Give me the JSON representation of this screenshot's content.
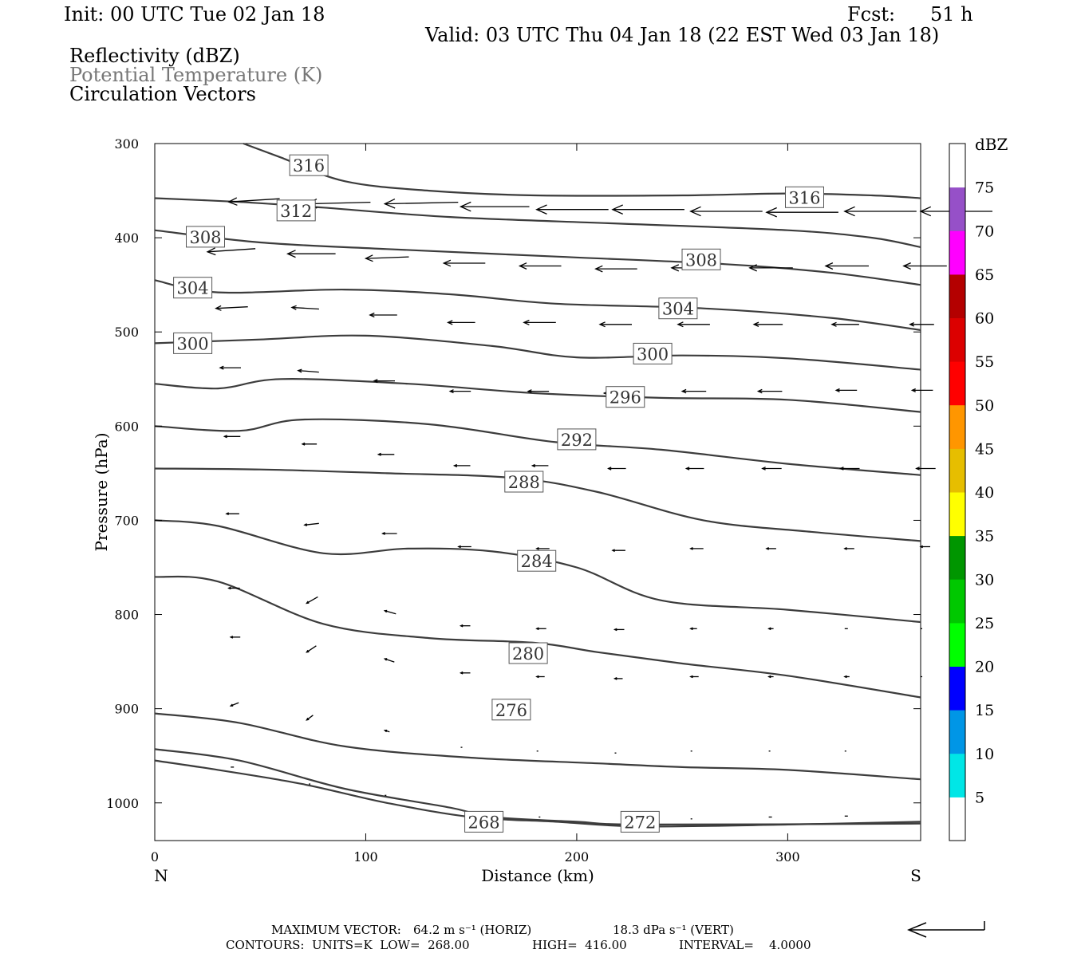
{
  "header": {
    "init": "Init: 00 UTC Tue 02 Jan 18",
    "fcst_label": "Fcst:",
    "fcst_value": "51 h",
    "valid": "Valid: 03 UTC Thu 04 Jan 18 (22 EST Wed 03 Jan 18)",
    "fields": [
      "Reflectivity (dBZ)",
      "Potential Temperature (K)",
      "Circulation Vectors"
    ]
  },
  "colors": {
    "field2_text": "#777777",
    "contour": "#3c3c3c",
    "vector": "#000000"
  },
  "chart_data": {
    "type": "line",
    "xlabel": "Distance (km)",
    "ylabel": "Pressure (hPa)",
    "xlim": [
      0,
      363
    ],
    "ylim": [
      300,
      1040
    ],
    "y_reversed": true,
    "x_ticks": [
      0,
      100,
      200,
      300
    ],
    "x_tick_labels": [
      "0",
      "100",
      "200",
      "300"
    ],
    "y_ticks": [
      300,
      400,
      500,
      600,
      700,
      800,
      900,
      1000
    ],
    "y_tick_labels": [
      "300",
      "400",
      "500",
      "600",
      "700",
      "800",
      "900",
      "1000"
    ],
    "x_end_labels": {
      "left": "N",
      "right": "S"
    },
    "contour_units": "K",
    "contours": [
      {
        "level": "316",
        "points": [
          [
            42,
            300
          ],
          [
            60,
            315
          ],
          [
            90,
            340
          ],
          [
            130,
            350
          ],
          [
            180,
            355
          ],
          [
            250,
            355
          ],
          [
            300,
            353
          ],
          [
            340,
            355
          ],
          [
            363,
            358
          ]
        ]
      },
      {
        "level": "312",
        "points": [
          [
            0,
            358
          ],
          [
            40,
            362
          ],
          [
            80,
            368
          ],
          [
            140,
            378
          ],
          [
            220,
            385
          ],
          [
            300,
            392
          ],
          [
            340,
            400
          ],
          [
            363,
            410
          ]
        ]
      },
      {
        "level": "308",
        "points": [
          [
            0,
            392
          ],
          [
            50,
            405
          ],
          [
            110,
            412
          ],
          [
            190,
            420
          ],
          [
            270,
            428
          ],
          [
            320,
            437
          ],
          [
            363,
            450
          ]
        ]
      },
      {
        "level": "304",
        "points": [
          [
            0,
            445
          ],
          [
            30,
            458
          ],
          [
            90,
            455
          ],
          [
            140,
            460
          ],
          [
            190,
            470
          ],
          [
            260,
            475
          ],
          [
            320,
            485
          ],
          [
            363,
            498
          ]
        ]
      },
      {
        "level": "300",
        "points": [
          [
            0,
            512
          ],
          [
            50,
            508
          ],
          [
            100,
            504
          ],
          [
            160,
            515
          ],
          [
            200,
            527
          ],
          [
            250,
            525
          ],
          [
            300,
            528
          ],
          [
            363,
            540
          ]
        ]
      },
      {
        "level": "296",
        "points": [
          [
            0,
            555
          ],
          [
            30,
            560
          ],
          [
            60,
            550
          ],
          [
            120,
            555
          ],
          [
            180,
            565
          ],
          [
            240,
            570
          ],
          [
            300,
            572
          ],
          [
            363,
            585
          ]
        ]
      },
      {
        "level": "292",
        "points": [
          [
            0,
            600
          ],
          [
            40,
            605
          ],
          [
            70,
            593
          ],
          [
            130,
            598
          ],
          [
            190,
            617
          ],
          [
            240,
            625
          ],
          [
            300,
            640
          ],
          [
            363,
            652
          ]
        ]
      },
      {
        "level": "288",
        "points": [
          [
            0,
            645
          ],
          [
            50,
            646
          ],
          [
            110,
            650
          ],
          [
            170,
            655
          ],
          [
            210,
            670
          ],
          [
            260,
            700
          ],
          [
            310,
            712
          ],
          [
            363,
            722
          ]
        ]
      },
      {
        "level": "284",
        "points": [
          [
            0,
            700
          ],
          [
            30,
            706
          ],
          [
            80,
            735
          ],
          [
            120,
            730
          ],
          [
            160,
            733
          ],
          [
            200,
            750
          ],
          [
            240,
            785
          ],
          [
            300,
            795
          ],
          [
            363,
            808
          ]
        ]
      },
      {
        "level": "280",
        "points": [
          [
            0,
            760
          ],
          [
            30,
            765
          ],
          [
            80,
            810
          ],
          [
            130,
            825
          ],
          [
            180,
            830
          ],
          [
            210,
            840
          ],
          [
            250,
            852
          ],
          [
            300,
            865
          ],
          [
            363,
            888
          ]
        ]
      },
      {
        "level": "276",
        "points": [
          [
            0,
            905
          ],
          [
            40,
            915
          ],
          [
            90,
            940
          ],
          [
            150,
            952
          ],
          [
            210,
            958
          ],
          [
            250,
            962
          ],
          [
            300,
            965
          ],
          [
            363,
            975
          ]
        ]
      },
      {
        "level": "272",
        "points": [
          [
            0,
            943
          ],
          [
            40,
            955
          ],
          [
            90,
            985
          ],
          [
            140,
            1005
          ],
          [
            160,
            1015
          ],
          [
            200,
            1020
          ],
          [
            232,
            1023
          ],
          [
            363,
            1022
          ]
        ]
      },
      {
        "level": "268",
        "points": [
          [
            0,
            955
          ],
          [
            30,
            965
          ],
          [
            70,
            980
          ],
          [
            110,
            1000
          ],
          [
            150,
            1015
          ],
          [
            190,
            1020
          ],
          [
            230,
            1025
          ],
          [
            300,
            1023
          ],
          [
            363,
            1020
          ]
        ]
      }
    ],
    "contour_labels": [
      {
        "level": "316",
        "x": 73,
        "p": 323
      },
      {
        "level": "316",
        "x": 308,
        "p": 357
      },
      {
        "level": "312",
        "x": 67,
        "p": 371
      },
      {
        "level": "308",
        "x": 24,
        "p": 399
      },
      {
        "level": "308",
        "x": 259,
        "p": 423
      },
      {
        "level": "304",
        "x": 18,
        "p": 453
      },
      {
        "level": "304",
        "x": 248,
        "p": 475
      },
      {
        "level": "300",
        "x": 18,
        "p": 512
      },
      {
        "level": "300",
        "x": 236,
        "p": 523
      },
      {
        "level": "296",
        "x": 223,
        "p": 569
      },
      {
        "level": "292",
        "x": 200,
        "p": 614
      },
      {
        "level": "288",
        "x": 175,
        "p": 659
      },
      {
        "level": "284",
        "x": 181,
        "p": 743
      },
      {
        "level": "280",
        "x": 177,
        "p": 841
      },
      {
        "level": "276",
        "x": 169,
        "p": 901
      },
      {
        "level": "272",
        "x": 230,
        "p": 1020
      },
      {
        "level": "268",
        "x": 156,
        "p": 1020
      }
    ],
    "vectors": [
      {
        "x": 35,
        "p": 362,
        "u": -3.2,
        "v": 0.2
      },
      {
        "x": 72,
        "p": 364,
        "u": -4.0,
        "v": 0.1
      },
      {
        "x": 109,
        "p": 364,
        "u": -4.6,
        "v": 0.1
      },
      {
        "x": 145,
        "p": 367,
        "u": -4.3,
        "v": 0
      },
      {
        "x": 181,
        "p": 370,
        "u": -4.5,
        "v": 0
      },
      {
        "x": 217,
        "p": 370,
        "u": -4.5,
        "v": 0
      },
      {
        "x": 254,
        "p": 372,
        "u": -4.5,
        "v": 0
      },
      {
        "x": 290,
        "p": 373,
        "u": -4.5,
        "v": 0
      },
      {
        "x": 327,
        "p": 372,
        "u": -4.5,
        "v": 0
      },
      {
        "x": 363,
        "p": 372,
        "u": -4.5,
        "v": 0
      },
      {
        "x": 25,
        "p": 415,
        "u": -3.0,
        "v": 0.2
      },
      {
        "x": 63,
        "p": 417,
        "u": -3.0,
        "v": 0
      },
      {
        "x": 100,
        "p": 422,
        "u": -2.7,
        "v": 0.1
      },
      {
        "x": 137,
        "p": 427,
        "u": -2.6,
        "v": 0
      },
      {
        "x": 173,
        "p": 430,
        "u": -2.6,
        "v": 0
      },
      {
        "x": 209,
        "p": 433,
        "u": -2.6,
        "v": 0
      },
      {
        "x": 245,
        "p": 432,
        "u": -2.7,
        "v": 0
      },
      {
        "x": 282,
        "p": 432,
        "u": -2.7,
        "v": 0
      },
      {
        "x": 318,
        "p": 430,
        "u": -2.7,
        "v": 0
      },
      {
        "x": 355,
        "p": 430,
        "u": -2.7,
        "v": 0
      },
      {
        "x": 29,
        "p": 475,
        "u": -2.0,
        "v": 0.1
      },
      {
        "x": 65,
        "p": 474,
        "u": -1.7,
        "v": -0.1
      },
      {
        "x": 102,
        "p": 482,
        "u": -1.7,
        "v": 0
      },
      {
        "x": 139,
        "p": 490,
        "u": -1.7,
        "v": 0
      },
      {
        "x": 175,
        "p": 490,
        "u": -2.0,
        "v": 0
      },
      {
        "x": 211,
        "p": 492,
        "u": -2.0,
        "v": 0
      },
      {
        "x": 248,
        "p": 492,
        "u": -2.0,
        "v": 0
      },
      {
        "x": 284,
        "p": 492,
        "u": -1.8,
        "v": 0
      },
      {
        "x": 321,
        "p": 492,
        "u": -1.7,
        "v": 0
      },
      {
        "x": 358,
        "p": 492,
        "u": -1.5,
        "v": 0
      },
      {
        "x": 31,
        "p": 538,
        "u": -1.3,
        "v": 0
      },
      {
        "x": 68,
        "p": 541,
        "u": -1.3,
        "v": -0.1
      },
      {
        "x": 104,
        "p": 552,
        "u": -1.3,
        "v": 0
      },
      {
        "x": 140,
        "p": 563,
        "u": -1.3,
        "v": 0
      },
      {
        "x": 177,
        "p": 563,
        "u": -1.3,
        "v": 0
      },
      {
        "x": 213,
        "p": 565,
        "u": -1.5,
        "v": 0
      },
      {
        "x": 250,
        "p": 563,
        "u": -1.5,
        "v": 0
      },
      {
        "x": 286,
        "p": 563,
        "u": -1.5,
        "v": 0
      },
      {
        "x": 323,
        "p": 562,
        "u": -1.3,
        "v": 0
      },
      {
        "x": 359,
        "p": 562,
        "u": -1.3,
        "v": 0
      },
      {
        "x": 33,
        "p": 611,
        "u": -1.0,
        "v": 0
      },
      {
        "x": 70,
        "p": 619,
        "u": -0.9,
        "v": 0
      },
      {
        "x": 106,
        "p": 630,
        "u": -1.0,
        "v": 0
      },
      {
        "x": 142,
        "p": 642,
        "u": -1.0,
        "v": 0
      },
      {
        "x": 179,
        "p": 642,
        "u": -1.0,
        "v": 0
      },
      {
        "x": 215,
        "p": 645,
        "u": -1.1,
        "v": 0
      },
      {
        "x": 252,
        "p": 645,
        "u": -1.1,
        "v": 0
      },
      {
        "x": 288,
        "p": 645,
        "u": -1.2,
        "v": 0
      },
      {
        "x": 325,
        "p": 645,
        "u": -1.2,
        "v": 0
      },
      {
        "x": 361,
        "p": 645,
        "u": -1.2,
        "v": 0
      },
      {
        "x": 34,
        "p": 693,
        "u": -0.8,
        "v": 0
      },
      {
        "x": 71,
        "p": 705,
        "u": -0.9,
        "v": 0.1
      },
      {
        "x": 108,
        "p": 714,
        "u": -0.9,
        "v": 0
      },
      {
        "x": 144,
        "p": 728,
        "u": -0.8,
        "v": 0
      },
      {
        "x": 181,
        "p": 730,
        "u": -0.8,
        "v": 0
      },
      {
        "x": 217,
        "p": 732,
        "u": -0.8,
        "v": 0
      },
      {
        "x": 254,
        "p": 730,
        "u": -0.8,
        "v": 0
      },
      {
        "x": 290,
        "p": 730,
        "u": -0.6,
        "v": 0
      },
      {
        "x": 327,
        "p": 730,
        "u": -0.6,
        "v": 0
      },
      {
        "x": 363,
        "p": 728,
        "u": -0.6,
        "v": 0
      },
      {
        "x": 35,
        "p": 772,
        "u": -0.7,
        "v": 0
      },
      {
        "x": 72,
        "p": 788,
        "u": -0.7,
        "v": 0.4
      },
      {
        "x": 109,
        "p": 796,
        "u": -0.7,
        "v": -0.2
      },
      {
        "x": 145,
        "p": 812,
        "u": -0.6,
        "v": 0
      },
      {
        "x": 181,
        "p": 815,
        "u": -0.6,
        "v": 0
      },
      {
        "x": 218,
        "p": 816,
        "u": -0.6,
        "v": 0
      },
      {
        "x": 254,
        "p": 815,
        "u": -0.4,
        "v": 0
      },
      {
        "x": 291,
        "p": 815,
        "u": -0.3,
        "v": 0
      },
      {
        "x": 327,
        "p": 815,
        "u": -0.2,
        "v": 0
      },
      {
        "x": 363,
        "p": 815,
        "u": -0.1,
        "v": 0
      },
      {
        "x": 36,
        "p": 824,
        "u": -0.6,
        "v": 0
      },
      {
        "x": 72,
        "p": 840,
        "u": -0.6,
        "v": 0.4
      },
      {
        "x": 109,
        "p": 847,
        "u": -0.6,
        "v": -0.2
      },
      {
        "x": 145,
        "p": 862,
        "u": -0.6,
        "v": 0
      },
      {
        "x": 181,
        "p": 866,
        "u": -0.5,
        "v": 0
      },
      {
        "x": 218,
        "p": 868,
        "u": -0.5,
        "v": 0
      },
      {
        "x": 254,
        "p": 866,
        "u": -0.5,
        "v": 0
      },
      {
        "x": 291,
        "p": 866,
        "u": -0.3,
        "v": 0
      },
      {
        "x": 327,
        "p": 866,
        "u": -0.3,
        "v": 0
      },
      {
        "x": 363,
        "p": 866,
        "u": -0.1,
        "v": 0
      },
      {
        "x": 36,
        "p": 897,
        "u": -0.5,
        "v": 0.2
      },
      {
        "x": 72,
        "p": 912,
        "u": -0.4,
        "v": 0.3
      },
      {
        "x": 109,
        "p": 923,
        "u": -0.3,
        "v": -0.1
      },
      {
        "x": 145,
        "p": 941,
        "u": -0.1,
        "v": 0
      },
      {
        "x": 181,
        "p": 945,
        "u": -0.1,
        "v": 0
      },
      {
        "x": 218,
        "p": 947,
        "u": -0.1,
        "v": 0
      },
      {
        "x": 254,
        "p": 945,
        "u": -0.1,
        "v": 0
      },
      {
        "x": 291,
        "p": 945,
        "u": -0.1,
        "v": 0
      },
      {
        "x": 327,
        "p": 945,
        "u": -0.1,
        "v": 0
      },
      {
        "x": 36,
        "p": 962,
        "u": -0.2,
        "v": 0
      },
      {
        "x": 73,
        "p": 980,
        "u": -0.1,
        "v": 0
      },
      {
        "x": 109,
        "p": 992,
        "u": -0.1,
        "v": 0
      },
      {
        "x": 182,
        "p": 1015,
        "u": -0.1,
        "v": 0
      },
      {
        "x": 254,
        "p": 1017,
        "u": -0.1,
        "v": 0
      },
      {
        "x": 291,
        "p": 1015,
        "u": -0.2,
        "v": 0
      },
      {
        "x": 327,
        "p": 1014,
        "u": -0.2,
        "v": 0
      }
    ],
    "colorbar": {
      "title": "dBZ",
      "levels": [
        "5",
        "10",
        "15",
        "20",
        "25",
        "30",
        "35",
        "40",
        "45",
        "50",
        "55",
        "60",
        "65",
        "70",
        "75"
      ],
      "colors": [
        "#ffffff",
        "#00e6e6",
        "#0096e6",
        "#0000ff",
        "#00ff00",
        "#00c800",
        "#009600",
        "#ffff00",
        "#e6be00",
        "#ff9600",
        "#ff0000",
        "#dc0000",
        "#b40000",
        "#ff00ff",
        "#9650c8",
        "#ffffff"
      ]
    }
  },
  "footer": {
    "line1_label": "MAXIMUM VECTOR:",
    "line1_horiz": "64.2 m s⁻¹ (HORIZ)",
    "line1_vert": "18.3 dPa s⁻¹ (VERT)",
    "line2_units": "CONTOURS:  UNITS=K  LOW=  268.00",
    "line2_high": "HIGH=  416.00",
    "line2_interval": "INTERVAL=    4.0000"
  }
}
